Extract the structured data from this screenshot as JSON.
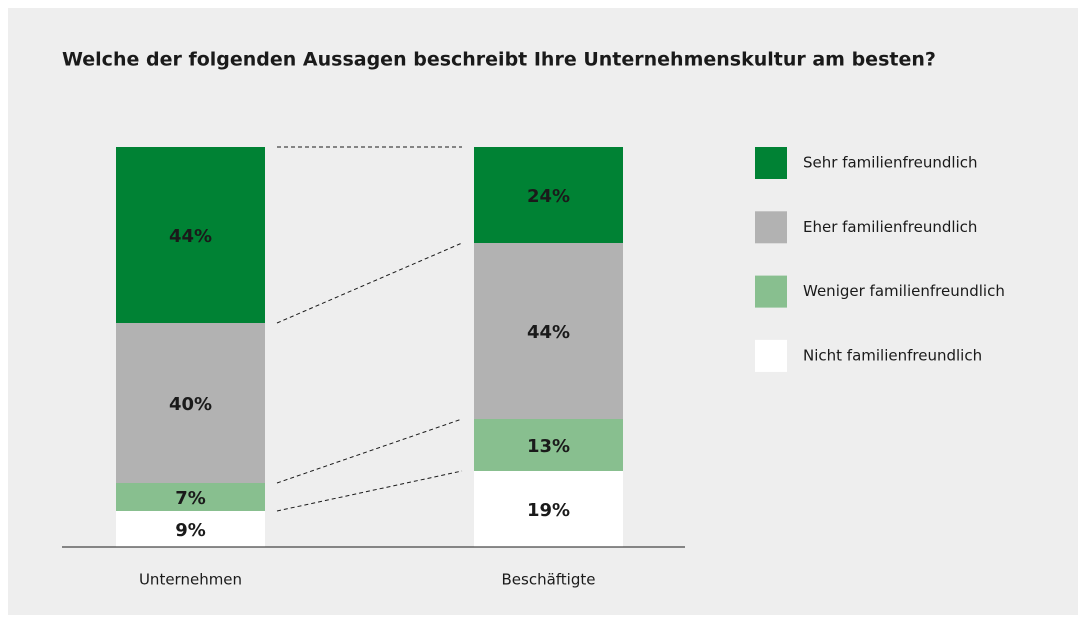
{
  "chart_data": {
    "type": "stacked_bar",
    "title": "Welche der folgenden Aussagen beschreibt Ihre Unternehmenskultur am besten?",
    "categories": [
      "Unternehmen",
      "Beschäftigte"
    ],
    "ylim": [
      0,
      100
    ],
    "legend": "right",
    "series": [
      {
        "name": "Nicht familienfreundlich",
        "color": "#ffffff",
        "values": [
          9,
          19
        ],
        "value_labels": [
          "9%",
          "19%"
        ]
      },
      {
        "name": "Weniger familienfreundlich",
        "color": "#88bf8f",
        "values": [
          7,
          13
        ],
        "value_labels": [
          "7%",
          "13%"
        ]
      },
      {
        "name": "Eher familienfreundlich",
        "color": "#b2b2b2",
        "values": [
          40,
          44
        ],
        "value_labels": [
          "40%",
          "44%"
        ]
      },
      {
        "name": "Sehr familienfreundlich",
        "color": "#008234",
        "values": [
          44,
          24
        ],
        "value_labels": [
          "44%",
          "24%"
        ]
      }
    ]
  }
}
